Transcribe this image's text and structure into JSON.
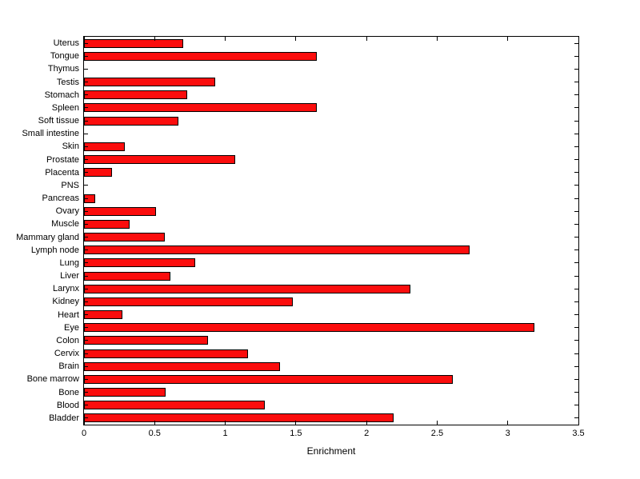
{
  "figure": {
    "background": "#ffffff",
    "bar_color": "#fb0d0d",
    "bar_edge_color": "#000000",
    "axis_color": "#000000"
  },
  "chart_data": {
    "type": "bar",
    "orientation": "horizontal",
    "title": "",
    "xlabel": "Enrichment",
    "ylabel": "",
    "xlim": [
      0,
      3.5
    ],
    "xticks": [
      0,
      0.5,
      1,
      1.5,
      2,
      2.5,
      3,
      3.5
    ],
    "xtick_labels": [
      "0",
      "0.5",
      "1",
      "1.5",
      "2",
      "2.5",
      "3",
      "3.5"
    ],
    "grid": false,
    "legend": null,
    "category_order": "top-to-bottom",
    "categories": [
      "Uterus",
      "Tongue",
      "Thymus",
      "Testis",
      "Stomach",
      "Spleen",
      "Soft tissue",
      "Small intestine",
      "Skin",
      "Prostate",
      "Placenta",
      "PNS",
      "Pancreas",
      "Ovary",
      "Muscle",
      "Mammary gland",
      "Lymph node",
      "Lung",
      "Liver",
      "Larynx",
      "Kidney",
      "Heart",
      "Eye",
      "Colon",
      "Cervix",
      "Brain",
      "Bone marrow",
      "Bone",
      "Blood",
      "Bladder"
    ],
    "values": [
      0.7,
      1.65,
      0,
      0.93,
      0.73,
      1.65,
      0.67,
      0,
      0.29,
      1.07,
      0.2,
      0,
      0.08,
      0.51,
      0.32,
      0.57,
      2.73,
      0.79,
      0.61,
      2.31,
      1.48,
      0.27,
      3.19,
      0.88,
      1.16,
      1.39,
      2.61,
      0.58,
      1.28,
      2.19
    ]
  }
}
